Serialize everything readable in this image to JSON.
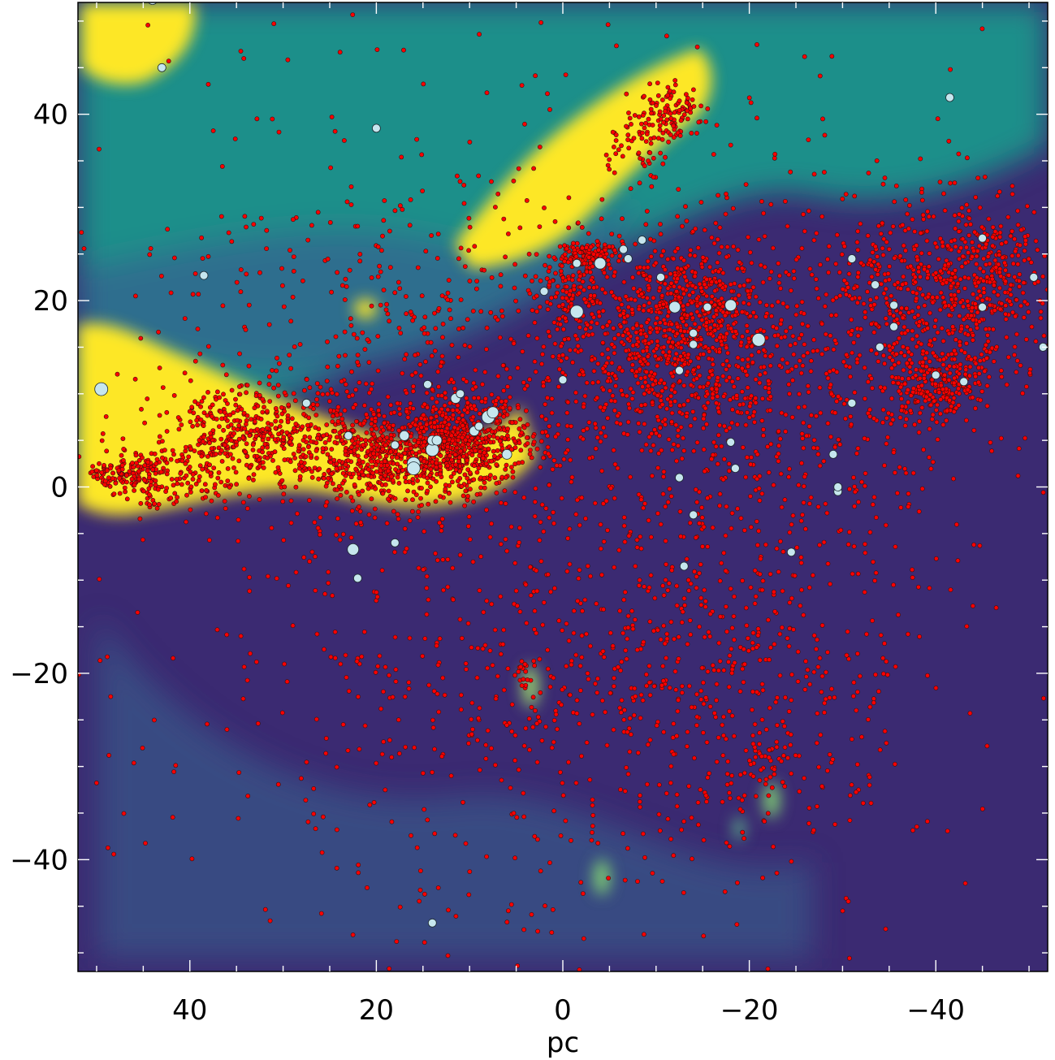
{
  "chart_data": {
    "type": "scatter",
    "title": "",
    "xlabel": "pc",
    "ylabel": "",
    "xlim": [
      52,
      -52
    ],
    "ylim": [
      -52,
      52
    ],
    "x_ticks": [
      40,
      20,
      0,
      -20,
      -40
    ],
    "x_tick_labels": [
      "40",
      "20",
      "0",
      "−20",
      "−40"
    ],
    "y_ticks": [
      40,
      20,
      0,
      -20,
      -40
    ],
    "y_tick_labels": [
      "40",
      "20",
      "0",
      "−20",
      "−40"
    ],
    "minor_tick_step": 5,
    "grid": false,
    "legend": "none",
    "colors": {
      "point_small": "#ff0000",
      "point_large": "#c6e6ee",
      "point_edge": "#3a1010",
      "background_low": "#440d57",
      "background_mid": "#1f8f8a",
      "background_high": "#fde725"
    },
    "series": [
      {
        "marker": "small red dots",
        "clusters": [
          {
            "x": 14,
            "y": 4,
            "count": 600,
            "sx": 5,
            "sy": 2.5
          },
          {
            "x": 10,
            "y": 6,
            "count": 250,
            "sx": 3,
            "sy": 2
          },
          {
            "x": 22,
            "y": 3,
            "count": 300,
            "sx": 4,
            "sy": 3
          },
          {
            "x": 32,
            "y": 6,
            "count": 250,
            "sx": 4,
            "sy": 2.5
          },
          {
            "x": 38,
            "y": 4,
            "count": 150,
            "sx": 3,
            "sy": 3
          },
          {
            "x": 44,
            "y": 1,
            "count": 130,
            "sx": 2.5,
            "sy": 1.6
          },
          {
            "x": 48,
            "y": 1.5,
            "count": 70,
            "sx": 1.5,
            "sy": 1
          },
          {
            "x": -12,
            "y": 14,
            "count": 650,
            "sx": 6,
            "sy": 5
          },
          {
            "x": -14,
            "y": 21,
            "count": 250,
            "sx": 4,
            "sy": 3
          },
          {
            "x": -3,
            "y": 25,
            "count": 120,
            "sx": 1.5,
            "sy": 0.8
          },
          {
            "x": -1,
            "y": 21,
            "count": 120,
            "sx": 2,
            "sy": 2
          },
          {
            "x": -40,
            "y": 20,
            "count": 450,
            "sx": 5,
            "sy": 5
          },
          {
            "x": -40,
            "y": 11,
            "count": 200,
            "sx": 2.5,
            "sy": 1.8
          },
          {
            "x": -46,
            "y": 24,
            "count": 200,
            "sx": 3,
            "sy": 3
          },
          {
            "x": -25,
            "y": 12,
            "count": 500,
            "sx": 12,
            "sy": 10
          },
          {
            "x": -12,
            "y": 40,
            "count": 100,
            "sx": 1.6,
            "sy": 1.4
          },
          {
            "x": -8,
            "y": 37,
            "count": 60,
            "sx": 2,
            "sy": 2
          },
          {
            "x": 2,
            "y": -20,
            "count": 500,
            "sx": 14,
            "sy": 14
          },
          {
            "x": -20,
            "y": -20,
            "count": 300,
            "sx": 8,
            "sy": 10
          },
          {
            "x": 15,
            "y": 15,
            "count": 400,
            "sx": 15,
            "sy": 10
          },
          {
            "x": -22,
            "y": -30,
            "count": 40,
            "sx": 1.5,
            "sy": 2
          },
          {
            "x": 4,
            "y": -20,
            "count": 15,
            "sx": 0.5,
            "sy": 0.8
          },
          {
            "x": 0,
            "y": 0,
            "count": 600,
            "sx": 30,
            "sy": 28
          }
        ]
      },
      {
        "marker": "light blue circles",
        "points": [
          {
            "x": 44,
            "y": 52.3,
            "size": 6
          },
          {
            "x": 43,
            "y": 45,
            "size": 5
          },
          {
            "x": 20,
            "y": 38.5,
            "size": 5
          },
          {
            "x": 38.5,
            "y": 22.7,
            "size": 5
          },
          {
            "x": 49.5,
            "y": 10.5,
            "size": 8
          },
          {
            "x": 27.5,
            "y": 9,
            "size": 5
          },
          {
            "x": 23,
            "y": 5.5,
            "size": 5
          },
          {
            "x": 18,
            "y": 4.5,
            "size": 5
          },
          {
            "x": 17,
            "y": 5.5,
            "size": 6
          },
          {
            "x": 16,
            "y": 2.5,
            "size": 8
          },
          {
            "x": 16,
            "y": 2,
            "size": 8
          },
          {
            "x": 14,
            "y": 4,
            "size": 8
          },
          {
            "x": 14,
            "y": 5,
            "size": 6
          },
          {
            "x": 13.5,
            "y": 5,
            "size": 6
          },
          {
            "x": 11.5,
            "y": 9.5,
            "size": 6
          },
          {
            "x": 11,
            "y": 10,
            "size": 5
          },
          {
            "x": 9.5,
            "y": 6,
            "size": 6
          },
          {
            "x": 9,
            "y": 6.5,
            "size": 5
          },
          {
            "x": 8,
            "y": 7.5,
            "size": 8
          },
          {
            "x": 7.5,
            "y": 8,
            "size": 7
          },
          {
            "x": 6,
            "y": 3.5,
            "size": 6
          },
          {
            "x": 14.5,
            "y": 11,
            "size": 5
          },
          {
            "x": 18,
            "y": -6,
            "size": 5
          },
          {
            "x": 22.5,
            "y": -6.7,
            "size": 7
          },
          {
            "x": 22,
            "y": -9.8,
            "size": 5
          },
          {
            "x": 14,
            "y": -46.8,
            "size": 5
          },
          {
            "x": 2,
            "y": 21,
            "size": 5
          },
          {
            "x": 0,
            "y": 11.5,
            "size": 5
          },
          {
            "x": -1.5,
            "y": 24,
            "size": 5
          },
          {
            "x": -1.5,
            "y": 18.8,
            "size": 8
          },
          {
            "x": -4,
            "y": 24,
            "size": 7
          },
          {
            "x": -6.5,
            "y": 25.5,
            "size": 5
          },
          {
            "x": -7,
            "y": 24.5,
            "size": 5
          },
          {
            "x": -8.5,
            "y": 26.5,
            "size": 5
          },
          {
            "x": -10.5,
            "y": 22.5,
            "size": 5
          },
          {
            "x": -12,
            "y": 19.3,
            "size": 7
          },
          {
            "x": -14,
            "y": 16.5,
            "size": 5
          },
          {
            "x": -14,
            "y": 15.3,
            "size": 5
          },
          {
            "x": -15.5,
            "y": 19.3,
            "size": 5
          },
          {
            "x": -18,
            "y": 19.5,
            "size": 7
          },
          {
            "x": -21,
            "y": 15.8,
            "size": 8
          },
          {
            "x": -12.5,
            "y": 12.5,
            "size": 5
          },
          {
            "x": -12.5,
            "y": 1,
            "size": 5
          },
          {
            "x": -18,
            "y": 4.8,
            "size": 5
          },
          {
            "x": -18.5,
            "y": 2,
            "size": 5
          },
          {
            "x": -14,
            "y": -3,
            "size": 5
          },
          {
            "x": -13,
            "y": -8.5,
            "size": 5
          },
          {
            "x": -24.5,
            "y": -7,
            "size": 5
          },
          {
            "x": -29,
            "y": 3.5,
            "size": 5
          },
          {
            "x": -29.5,
            "y": -0.5,
            "size": 5
          },
          {
            "x": -29.5,
            "y": 0,
            "size": 5
          },
          {
            "x": -31,
            "y": 24.5,
            "size": 5
          },
          {
            "x": -31,
            "y": 9,
            "size": 5
          },
          {
            "x": -33.5,
            "y": 21.7,
            "size": 5
          },
          {
            "x": -34,
            "y": 15,
            "size": 5
          },
          {
            "x": -35.5,
            "y": 19.5,
            "size": 5
          },
          {
            "x": -35.5,
            "y": 17.2,
            "size": 5
          },
          {
            "x": -40,
            "y": 12,
            "size": 5
          },
          {
            "x": -41.5,
            "y": 41.8,
            "size": 5
          },
          {
            "x": -43,
            "y": 11.3,
            "size": 5
          },
          {
            "x": -45,
            "y": 26.7,
            "size": 5
          },
          {
            "x": -45,
            "y": 19.3,
            "size": 5
          },
          {
            "x": -50.5,
            "y": 22.5,
            "size": 5
          },
          {
            "x": -51.5,
            "y": 15,
            "size": 5
          }
        ]
      }
    ]
  }
}
